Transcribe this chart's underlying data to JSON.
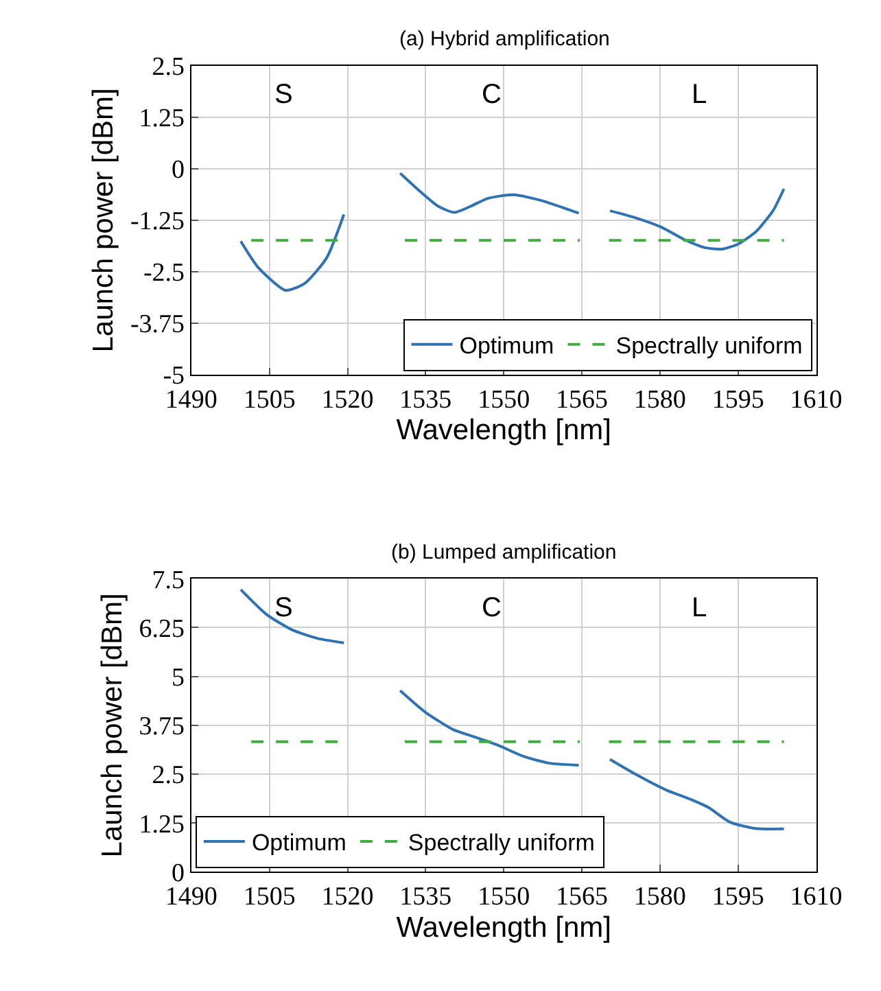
{
  "chart_data": [
    {
      "type": "line",
      "title": "(a) Hybrid amplification",
      "xlabel": "Wavelength [nm]",
      "ylabel": "Launch power [dBm]",
      "xlim": [
        1490,
        1610
      ],
      "xticks": [
        1490,
        1505,
        1520,
        1535,
        1550,
        1565,
        1580,
        1595,
        1610
      ],
      "ylim": [
        -5,
        2.5
      ],
      "yticks": [
        -5,
        -3.75,
        -2.5,
        -1.25,
        0,
        1.25,
        2.5
      ],
      "grid": true,
      "legend": "bottom right",
      "annotations": [
        "S",
        "C",
        "L"
      ],
      "series": [
        {
          "name": "Optimum",
          "color": "#2f73b5",
          "line_style": "solid",
          "x": [
            1499.5,
            1502.8,
            1508.1,
            1511.8,
            1516,
            1519.3,
            null,
            1530.1,
            1534.1,
            1537.4,
            1540.5,
            1544,
            1546.9,
            1551.8,
            1557.2,
            1561.3,
            1564.4,
            null,
            1570.4,
            1575.3,
            1580.3,
            1584.4,
            1588.5,
            1592,
            1595.1,
            1598.4,
            1601.7,
            1603.8
          ],
          "values": [
            -1.76,
            -2.39,
            -2.95,
            -2.78,
            -2.16,
            -1.11,
            null,
            -0.11,
            -0.57,
            -0.91,
            -1.06,
            -0.89,
            -0.72,
            -0.63,
            -0.77,
            -0.94,
            -1.08,
            null,
            -1.02,
            -1.19,
            -1.42,
            -1.7,
            -1.91,
            -1.95,
            -1.82,
            -1.53,
            -1.02,
            -0.49
          ]
        },
        {
          "name": "Spectrally uniform",
          "color": "#3fae3f",
          "line_style": "dashed",
          "x": [
            1501.5,
            1519.5,
            null,
            1531,
            1564.6,
            null,
            1570.2,
            1603.8
          ],
          "values": [
            -1.74,
            -1.74,
            null,
            -1.74,
            -1.74,
            null,
            -1.74,
            -1.74
          ]
        }
      ]
    },
    {
      "type": "line",
      "title": "(b) Lumped amplification",
      "xlabel": "Wavelength [nm]",
      "ylabel": "Launch power [dBm]",
      "xlim": [
        1490,
        1610
      ],
      "xticks": [
        1490,
        1505,
        1520,
        1535,
        1550,
        1565,
        1580,
        1595,
        1610
      ],
      "ylim": [
        0,
        7.5
      ],
      "yticks": [
        0,
        1.25,
        2.5,
        3.75,
        5,
        6.25,
        7.5
      ],
      "grid": true,
      "legend": "bottom left",
      "annotations": [
        "S",
        "C",
        "L"
      ],
      "series": [
        {
          "name": "Optimum",
          "color": "#2f73b5",
          "line_style": "solid",
          "x": [
            1499.5,
            1504.4,
            1509.4,
            1514.3,
            1519.3,
            null,
            1530.1,
            1534.9,
            1540.3,
            1544,
            1548.9,
            1553.9,
            1558.8,
            1564.4,
            null,
            1570.4,
            1575.3,
            1581.1,
            1586,
            1589.3,
            1593.5,
            1598.4,
            1603.8
          ],
          "values": [
            7.22,
            6.59,
            6.19,
            5.97,
            5.86,
            null,
            4.64,
            4.09,
            3.64,
            3.47,
            3.24,
            2.95,
            2.78,
            2.73,
            null,
            2.88,
            2.5,
            2.1,
            1.85,
            1.65,
            1.27,
            1.11,
            1.1
          ]
        },
        {
          "name": "Spectrally uniform",
          "color": "#3fae3f",
          "line_style": "dashed",
          "x": [
            1501.5,
            1519.5,
            null,
            1531,
            1564.6,
            null,
            1570.2,
            1603.8
          ],
          "values": [
            3.33,
            3.33,
            null,
            3.33,
            3.33,
            null,
            3.33,
            3.33
          ]
        }
      ]
    }
  ]
}
